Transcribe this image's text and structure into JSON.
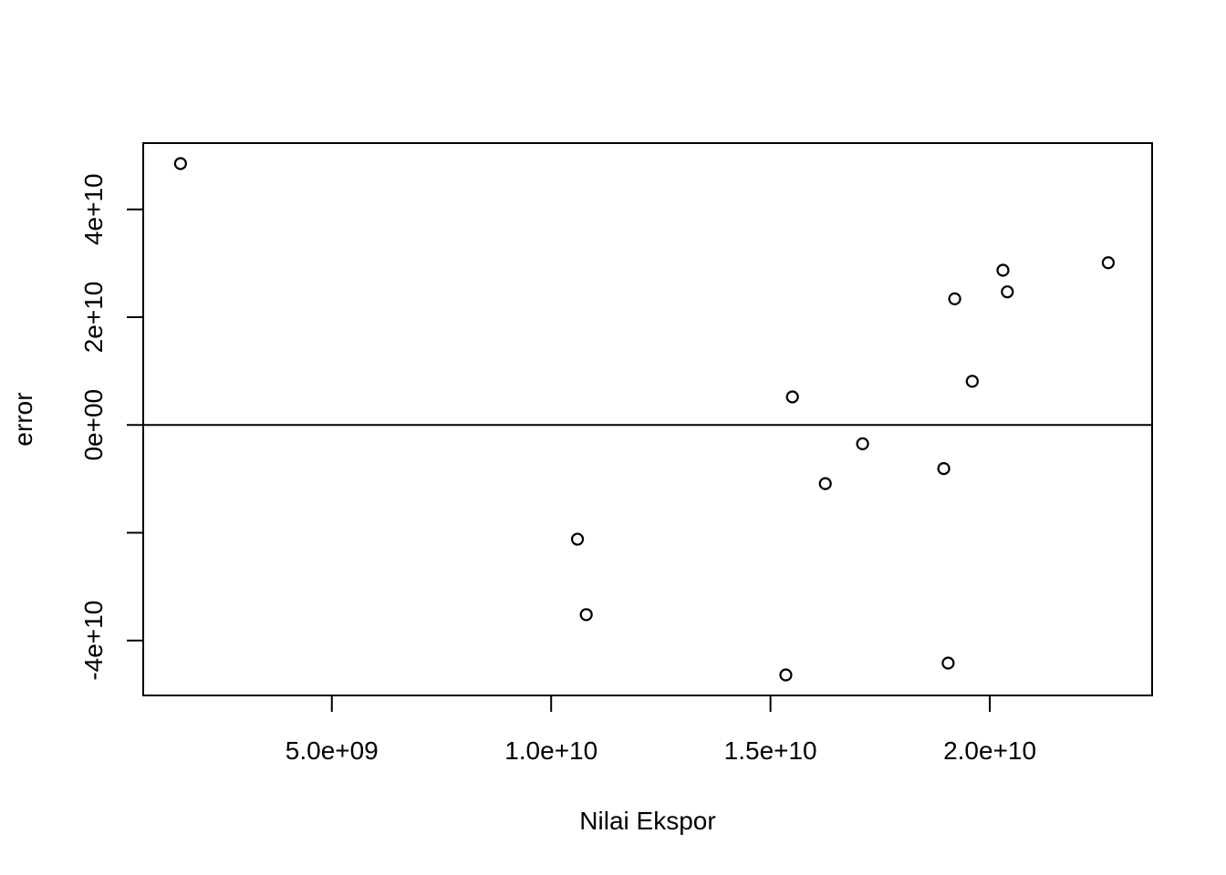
{
  "chart_data": {
    "type": "scatter",
    "title": "",
    "xlabel": "Nilai Ekspor",
    "ylabel": "error",
    "xlim": [
      700000000,
      23700000000
    ],
    "ylim": [
      -50200000000,
      52300000000
    ],
    "x_ticks": [
      5000000000,
      10000000000,
      15000000000,
      20000000000
    ],
    "x_tick_labels": [
      "5.0e+09",
      "1.0e+10",
      "1.5e+10",
      "2.0e+10"
    ],
    "y_ticks": [
      -40000000000,
      -20000000000,
      0,
      20000000000,
      40000000000
    ],
    "y_tick_labels": [
      "-4e+10",
      "",
      "0e+00",
      "2e+10",
      "4e+10"
    ],
    "reference_line_y": 0,
    "grid": false,
    "legend": "none",
    "colors": {
      "points": "#000000",
      "axes": "#000000",
      "background": "#ffffff"
    },
    "points": [
      {
        "x": 1550000000,
        "y": 48500000000
      },
      {
        "x": 10600000000,
        "y": -21200000000
      },
      {
        "x": 10800000000,
        "y": -35200000000
      },
      {
        "x": 15350000000,
        "y": -46400000000
      },
      {
        "x": 15500000000,
        "y": 5200000000
      },
      {
        "x": 16250000000,
        "y": -10900000000
      },
      {
        "x": 17100000000,
        "y": -3500000000
      },
      {
        "x": 18950000000,
        "y": -8100000000
      },
      {
        "x": 19050000000,
        "y": -44200000000
      },
      {
        "x": 19200000000,
        "y": 23400000000
      },
      {
        "x": 19600000000,
        "y": 8100000000
      },
      {
        "x": 20300000000,
        "y": 28700000000
      },
      {
        "x": 20400000000,
        "y": 24700000000
      },
      {
        "x": 22700000000,
        "y": 30100000000
      }
    ]
  }
}
